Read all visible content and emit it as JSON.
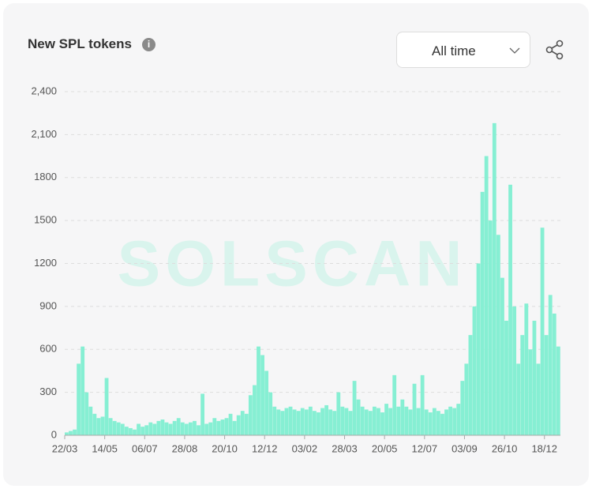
{
  "header": {
    "title": "New SPL tokens",
    "dropdown": "All time"
  },
  "chart_data": {
    "type": "bar",
    "watermark": "SOLSCAN",
    "color": "#86efd3",
    "categories": [
      "22/03",
      null,
      null,
      null,
      null,
      null,
      null,
      null,
      null,
      null,
      "14/05",
      null,
      null,
      null,
      null,
      null,
      null,
      null,
      null,
      null,
      "06/07",
      null,
      null,
      null,
      null,
      null,
      null,
      null,
      null,
      null,
      "28/08",
      null,
      null,
      null,
      null,
      null,
      null,
      null,
      null,
      null,
      "20/10",
      null,
      null,
      null,
      null,
      null,
      null,
      null,
      null,
      null,
      "12/12",
      null,
      null,
      null,
      null,
      null,
      null,
      null,
      null,
      null,
      "03/02",
      null,
      null,
      null,
      null,
      null,
      null,
      null,
      null,
      null,
      "28/03",
      null,
      null,
      null,
      null,
      null,
      null,
      null,
      null,
      null,
      "20/05",
      null,
      null,
      null,
      null,
      null,
      null,
      null,
      null,
      null,
      "12/07",
      null,
      null,
      null,
      null,
      null,
      null,
      null,
      null,
      null,
      "03/09",
      null,
      null,
      null,
      null,
      null,
      null,
      null,
      null,
      null,
      "26/10",
      null,
      null,
      null,
      null,
      null,
      null,
      null,
      null,
      null,
      "18/12",
      null,
      null,
      null
    ],
    "values": [
      20,
      30,
      40,
      500,
      620,
      300,
      200,
      150,
      120,
      130,
      400,
      120,
      100,
      90,
      80,
      60,
      50,
      40,
      80,
      60,
      70,
      90,
      80,
      100,
      110,
      90,
      80,
      100,
      120,
      90,
      80,
      90,
      100,
      70,
      290,
      80,
      90,
      120,
      100,
      110,
      120,
      150,
      100,
      140,
      170,
      150,
      280,
      350,
      620,
      560,
      450,
      300,
      200,
      180,
      170,
      190,
      200,
      180,
      170,
      190,
      180,
      200,
      170,
      160,
      190,
      210,
      180,
      170,
      300,
      200,
      190,
      170,
      380,
      250,
      200,
      180,
      170,
      200,
      190,
      160,
      220,
      190,
      420,
      200,
      250,
      200,
      180,
      360,
      190,
      420,
      180,
      160,
      190,
      170,
      150,
      180,
      200,
      190,
      220,
      380,
      500,
      700,
      900,
      1200,
      1700,
      1950,
      1500,
      2180,
      1400,
      1100,
      800,
      1750,
      900,
      500,
      700,
      920,
      600,
      800,
      500,
      1450,
      700,
      980,
      850,
      620
    ],
    "ylim": [
      0,
      2400
    ],
    "yticks": [
      0,
      300,
      600,
      900,
      1200,
      1500,
      1800,
      {
        "value": 2100,
        "label": "2,100"
      },
      {
        "value": 2400,
        "label": "2,400"
      }
    ],
    "grid": true
  }
}
